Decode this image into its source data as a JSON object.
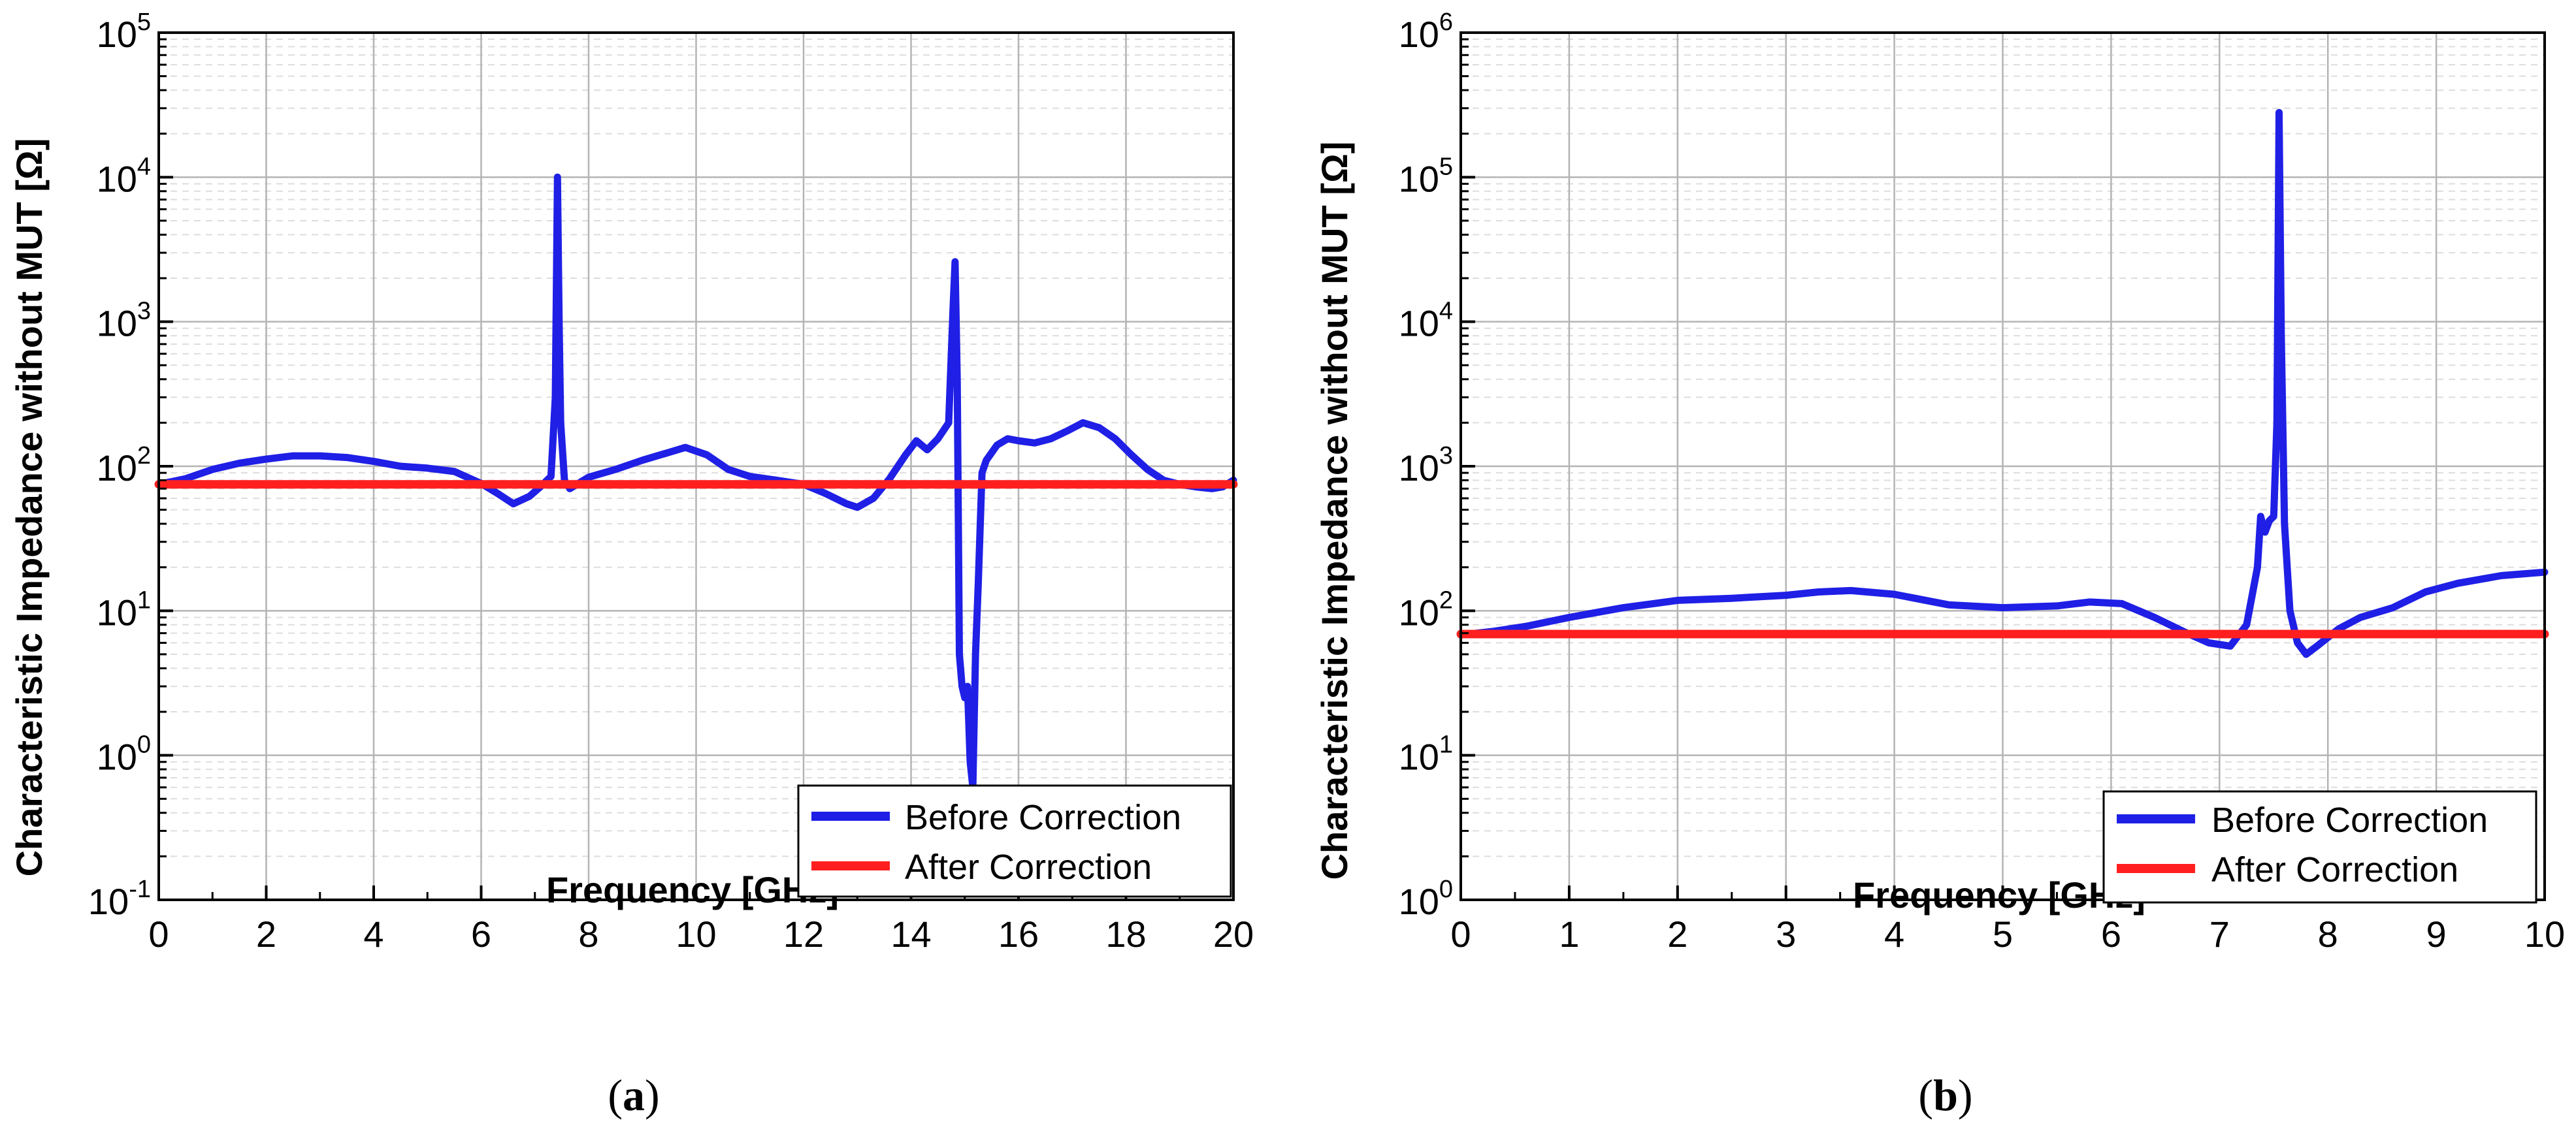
{
  "chart_data": [
    {
      "type": "line",
      "panel": "a",
      "panel_label": "a",
      "xlabel": "Frequency [GHz]",
      "ylabel": "Characteristic Impedance without MUT [Ω]",
      "yscale": "log",
      "xlim": [
        0,
        20
      ],
      "ylim_exponent": [
        -1,
        5
      ],
      "xticks": [
        "0",
        "2",
        "4",
        "6",
        "8",
        "10",
        "12",
        "14",
        "16",
        "18",
        "20"
      ],
      "yticks": [
        {
          "base": "10",
          "exp": "-1"
        },
        {
          "base": "10",
          "exp": "0"
        },
        {
          "base": "10",
          "exp": "1"
        },
        {
          "base": "10",
          "exp": "2"
        },
        {
          "base": "10",
          "exp": "3"
        },
        {
          "base": "10",
          "exp": "4"
        },
        {
          "base": "10",
          "exp": "5"
        }
      ],
      "grid": true,
      "legend_position": "bottom-right",
      "series": [
        {
          "name": "Before Correction",
          "color": "#1f1fe6",
          "x": [
            0,
            0.5,
            1,
            1.5,
            2,
            2.5,
            3,
            3.5,
            4,
            4.5,
            5,
            5.5,
            6,
            6.3,
            6.6,
            6.9,
            7.1,
            7.3,
            7.38,
            7.42,
            7.45,
            7.48,
            7.55,
            7.65,
            8,
            8.5,
            9,
            9.5,
            9.8,
            10.2,
            10.6,
            11,
            11.5,
            12,
            12.4,
            12.8,
            13,
            13.3,
            13.6,
            13.9,
            14.1,
            14.3,
            14.5,
            14.7,
            14.78,
            14.82,
            14.86,
            14.9,
            14.95,
            15.0,
            15.05,
            15.1,
            15.15,
            15.2,
            15.25,
            15.32,
            15.4,
            15.6,
            15.8,
            16,
            16.3,
            16.6,
            16.9,
            17.2,
            17.5,
            17.8,
            18.1,
            18.4,
            18.7,
            19,
            19.3,
            19.6,
            19.8,
            20
          ],
          "y": [
            75,
            82,
            95,
            105,
            112,
            118,
            118,
            115,
            108,
            100,
            97,
            92,
            76,
            65,
            55,
            62,
            72,
            85,
            300,
            10000,
            1000,
            200,
            80,
            70,
            84,
            95,
            110,
            125,
            135,
            120,
            95,
            85,
            80,
            75,
            65,
            55,
            52,
            60,
            82,
            120,
            150,
            130,
            155,
            200,
            1200,
            2600,
            400,
            5,
            3,
            2.5,
            3,
            0.9,
            0.6,
            5,
            15,
            90,
            110,
            140,
            155,
            150,
            145,
            155,
            175,
            200,
            185,
            155,
            120,
            95,
            80,
            75,
            72,
            70,
            72,
            80
          ]
        },
        {
          "name": "After Correction",
          "color": "#ff1f1f",
          "x": [
            0,
            20
          ],
          "y": [
            75,
            75
          ]
        }
      ]
    },
    {
      "type": "line",
      "panel": "b",
      "panel_label": "b",
      "xlabel": "Frequency [GHz]",
      "ylabel": "Characteristic Impedance without MUT [Ω]",
      "yscale": "log",
      "xlim": [
        0,
        10
      ],
      "ylim_exponent": [
        0,
        6
      ],
      "xticks": [
        "0",
        "1",
        "2",
        "3",
        "4",
        "5",
        "6",
        "7",
        "8",
        "9",
        "10"
      ],
      "yticks": [
        {
          "base": "10",
          "exp": "0"
        },
        {
          "base": "10",
          "exp": "1"
        },
        {
          "base": "10",
          "exp": "2"
        },
        {
          "base": "10",
          "exp": "3"
        },
        {
          "base": "10",
          "exp": "4"
        },
        {
          "base": "10",
          "exp": "5"
        },
        {
          "base": "10",
          "exp": "6"
        }
      ],
      "grid": true,
      "legend_position": "bottom-right",
      "series": [
        {
          "name": "Before Correction",
          "color": "#1f1fe6",
          "x": [
            0,
            0.3,
            0.6,
            1,
            1.5,
            2,
            2.5,
            3,
            3.3,
            3.6,
            4,
            4.5,
            5,
            5.5,
            5.8,
            6.1,
            6.4,
            6.7,
            6.9,
            7.1,
            7.25,
            7.35,
            7.38,
            7.42,
            7.46,
            7.5,
            7.53,
            7.55,
            7.57,
            7.6,
            7.65,
            7.72,
            7.8,
            7.9,
            8.1,
            8.3,
            8.6,
            8.9,
            9.2,
            9.6,
            10
          ],
          "y": [
            68,
            72,
            78,
            90,
            105,
            118,
            122,
            128,
            135,
            138,
            130,
            110,
            105,
            108,
            115,
            112,
            90,
            70,
            60,
            57,
            80,
            200,
            450,
            350,
            420,
            450,
            2000,
            280000,
            8000,
            400,
            100,
            60,
            50,
            57,
            75,
            90,
            105,
            135,
            155,
            175,
            185
          ]
        },
        {
          "name": "After Correction",
          "color": "#ff1f1f",
          "x": [
            0,
            10
          ],
          "y": [
            69,
            69
          ]
        }
      ]
    }
  ]
}
